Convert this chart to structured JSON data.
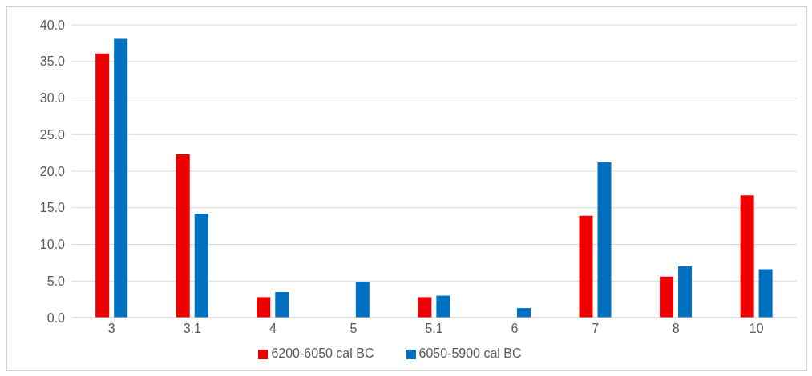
{
  "chart_data": {
    "type": "bar",
    "categories": [
      "3",
      "3.1",
      "4",
      "5",
      "5.1",
      "6",
      "7",
      "8",
      "10"
    ],
    "series": [
      {
        "name": "6200-6050 cal BC",
        "color": "#ee0000",
        "values": [
          36.1,
          22.3,
          2.8,
          0,
          2.8,
          0,
          13.9,
          5.6,
          16.7
        ]
      },
      {
        "name": "6050-5900 cal BC",
        "color": "#0070c0",
        "values": [
          38.1,
          14.2,
          3.5,
          4.9,
          3.0,
          1.3,
          21.2,
          7.0,
          6.6
        ]
      }
    ],
    "ylim": [
      0,
      40
    ],
    "yticks": [
      {
        "value": 0,
        "label": "0.0"
      },
      {
        "value": 5,
        "label": "5.0"
      },
      {
        "value": 10,
        "label": "10.0"
      },
      {
        "value": 15,
        "label": "15.0"
      },
      {
        "value": 20,
        "label": "20.0"
      },
      {
        "value": 25,
        "label": "25.0"
      },
      {
        "value": 30,
        "label": "30.0"
      },
      {
        "value": 35,
        "label": "35.0"
      },
      {
        "value": 40,
        "label": "40.0"
      }
    ],
    "grid": "y",
    "legend": "bottom"
  }
}
